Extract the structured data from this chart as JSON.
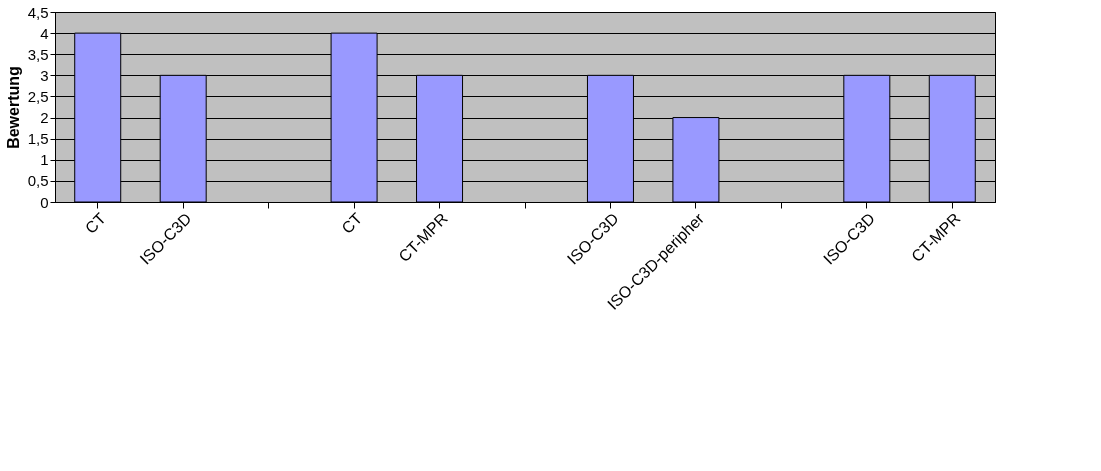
{
  "chart_data": {
    "type": "bar",
    "ylabel": "Bewertung",
    "categories": [
      "CT",
      "ISO-C3D",
      null,
      "CT",
      "CT-MPR",
      null,
      "ISO-C3D",
      "ISO-C3D-peripher",
      null,
      "ISO-C3D",
      "CT-MPR"
    ],
    "values": [
      4,
      3,
      null,
      4,
      3,
      null,
      3,
      2,
      null,
      3,
      3
    ],
    "color": "#9999ff",
    "ylim": [
      0,
      4.5
    ],
    "yticks": [
      0,
      {
        "value": 0.5,
        "label": "0,5"
      },
      1,
      {
        "value": 1.5,
        "label": "1,5"
      },
      2,
      {
        "value": 2.5,
        "label": "2,5"
      },
      3,
      {
        "value": 3.5,
        "label": "3,5"
      },
      4,
      {
        "value": 4.5,
        "label": "4,5"
      }
    ],
    "grid": "y"
  }
}
